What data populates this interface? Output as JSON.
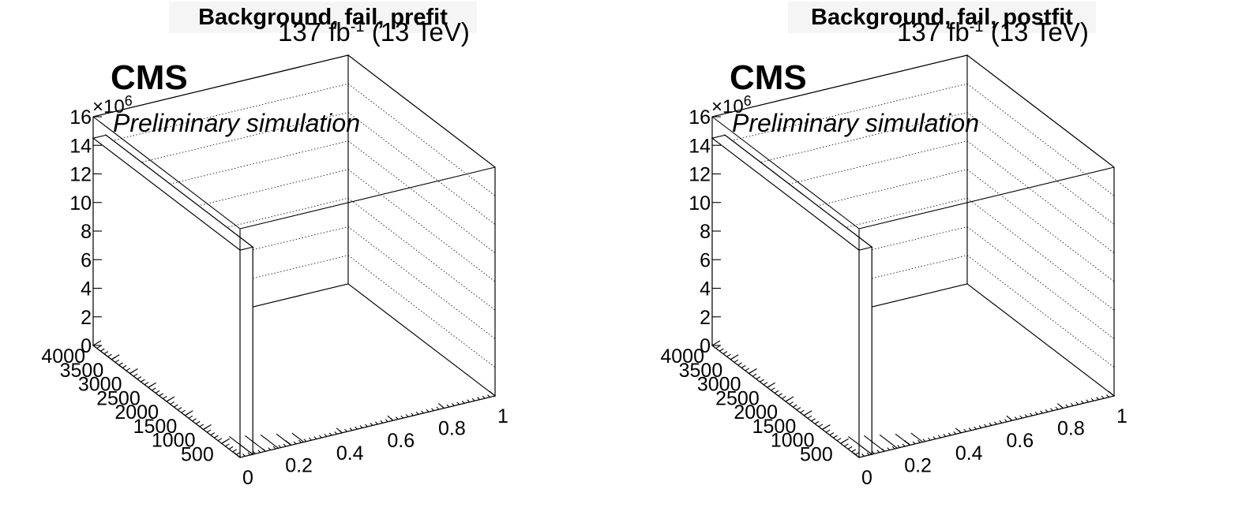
{
  "panels": [
    {
      "title": "Background, fail, prefit",
      "lumi": "137 fb",
      "lumi_exp": "-1",
      "energy": "(13 TeV)",
      "cms": "CMS",
      "preliminary": "Preliminary simulation",
      "multiplier": "×10",
      "multiplier_exp": "6"
    },
    {
      "title": "Background, fail, postfit",
      "lumi": "137 fb",
      "lumi_exp": "-1",
      "energy": "(13 TeV)",
      "cms": "CMS",
      "preliminary": "Preliminary simulation",
      "multiplier": "×10",
      "multiplier_exp": "6"
    }
  ],
  "chart_data": [
    {
      "type": "bar",
      "title": "Background, fail, prefit",
      "z_ticks": [
        "0",
        "2",
        "4",
        "6",
        "8",
        "10",
        "12",
        "14",
        "16"
      ],
      "z_multiplier": "×10^6",
      "zlim": [
        0,
        16000000
      ],
      "y_ticks": [
        "500",
        "1000",
        "1500",
        "2000",
        "2500",
        "3000",
        "3500",
        "4000"
      ],
      "ylim": [
        0,
        4000
      ],
      "x_ticks": [
        "0",
        "0.2",
        "0.4",
        "0.6",
        "0.8",
        "1"
      ],
      "xlim": [
        0,
        1
      ],
      "grid": true,
      "bars": [
        {
          "x": [
            0,
            0.05
          ],
          "y": [
            0,
            4000
          ],
          "z": 14500000
        }
      ]
    },
    {
      "type": "bar",
      "title": "Background, fail, postfit",
      "z_ticks": [
        "0",
        "2",
        "4",
        "6",
        "8",
        "10",
        "12",
        "14",
        "16"
      ],
      "z_multiplier": "×10^6",
      "zlim": [
        0,
        16000000
      ],
      "y_ticks": [
        "500",
        "1000",
        "1500",
        "2000",
        "2500",
        "3000",
        "3500",
        "4000"
      ],
      "ylim": [
        0,
        4000
      ],
      "x_ticks": [
        "0",
        "0.2",
        "0.4",
        "0.6",
        "0.8",
        "1"
      ],
      "xlim": [
        0,
        1
      ],
      "grid": true,
      "bars": [
        {
          "x": [
            0,
            0.05
          ],
          "y": [
            0,
            4000
          ],
          "z": 14500000
        }
      ]
    }
  ]
}
